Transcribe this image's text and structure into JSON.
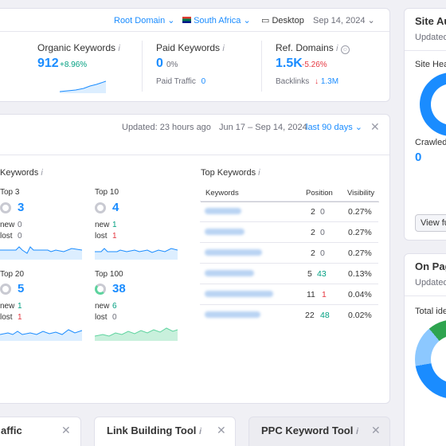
{
  "top_bar": {
    "root_domain": "Root Domain",
    "country": "South Africa",
    "device": "Desktop",
    "date": "Sep 14, 2024"
  },
  "metrics": {
    "organic": {
      "label": "Organic Keywords",
      "value": "912",
      "change": "+8.96%"
    },
    "paid": {
      "label": "Paid Keywords",
      "value": "0",
      "change": "0%",
      "sub_label": "Paid Traffic",
      "sub_value": "0"
    },
    "ref": {
      "label": "Ref. Domains",
      "value": "1.5K",
      "change": "-5.26%",
      "sub_label": "Backlinks",
      "sub_value": "1.3M",
      "sub_arrow": "↓"
    }
  },
  "positions_card": {
    "updated": "Updated: 23 hours ago",
    "range": "Jun 17 – Sep 14, 2024",
    "period": "last 90 days",
    "keywords_title": "Keywords",
    "blocks": [
      {
        "title": "Top 3",
        "value": "3",
        "new_label": "new",
        "new": "0",
        "lost_label": "lost",
        "lost": "0"
      },
      {
        "title": "Top 10",
        "value": "4",
        "new_label": "new",
        "new": "1",
        "lost_label": "lost",
        "lost": "1"
      },
      {
        "title": "Top 20",
        "value": "5",
        "new_label": "new",
        "new": "1",
        "lost_label": "lost",
        "lost": "1"
      },
      {
        "title": "Top 100",
        "value": "38",
        "new_label": "new",
        "new": "6",
        "lost_label": "lost",
        "lost": "0"
      }
    ],
    "top_keywords": {
      "title": "Top Keywords",
      "headers": [
        "Keywords",
        "Position",
        "Visibility"
      ],
      "rows": [
        {
          "pos": "2",
          "change": "0",
          "vis": "0.27%"
        },
        {
          "pos": "2",
          "change": "0",
          "vis": "0.27%"
        },
        {
          "pos": "2",
          "change": "0",
          "vis": "0.27%"
        },
        {
          "pos": "5",
          "change": "43",
          "vis": "0.13%"
        },
        {
          "pos": "11",
          "change": "1",
          "vis": "0.04%"
        },
        {
          "pos": "22",
          "change": "48",
          "vis": "0.02%"
        }
      ]
    }
  },
  "site_audit": {
    "title": "Site Au",
    "updated": "Updated",
    "health": "Site Hea",
    "crawled": "Crawled",
    "crawled_value": "0",
    "view_button": "View fu"
  },
  "on_page": {
    "title": "On Pag",
    "updated": "Updated",
    "total": "Total ide"
  },
  "bottom_cards": {
    "traffic": "affic",
    "link_building": "Link Building Tool",
    "ppc": "PPC Keyword Tool"
  },
  "colors": {
    "accent": "#1a8cff",
    "green": "#009f81",
    "red": "#e5363f"
  }
}
